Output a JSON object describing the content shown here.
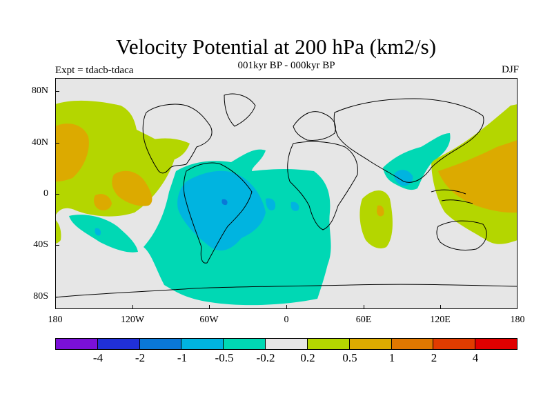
{
  "header": {
    "title": "Velocity Potential at 200 hPa (km2/s)",
    "subtitle": "001kyr BP - 000kyr BP",
    "left_label": "Expt = tdacb-tdaca",
    "right_label": "DJF"
  },
  "map": {
    "projection": "cylindrical equidistant",
    "lon_range": [
      -180,
      180
    ],
    "lat_range": [
      -90,
      90
    ],
    "lat_labels": [
      "80N",
      "40N",
      "0",
      "40S",
      "80S"
    ],
    "lon_labels": [
      "180",
      "120W",
      "60W",
      "0",
      "60E",
      "120E",
      "180"
    ],
    "background_color": "#e6e6e6",
    "coastline_color": "#000000"
  },
  "colorbar": {
    "colors": [
      "#7a10d8",
      "#2030d8",
      "#0a78d8",
      "#00b4e0",
      "#00d8b4",
      "#e6e6e6",
      "#b4d600",
      "#dcaa00",
      "#e07800",
      "#e03c00",
      "#e00000"
    ],
    "labels": [
      "-4",
      "-2",
      "-1",
      "-0.5",
      "-0.2",
      "0.2",
      "0.5",
      "1",
      "2",
      "4"
    ]
  }
}
